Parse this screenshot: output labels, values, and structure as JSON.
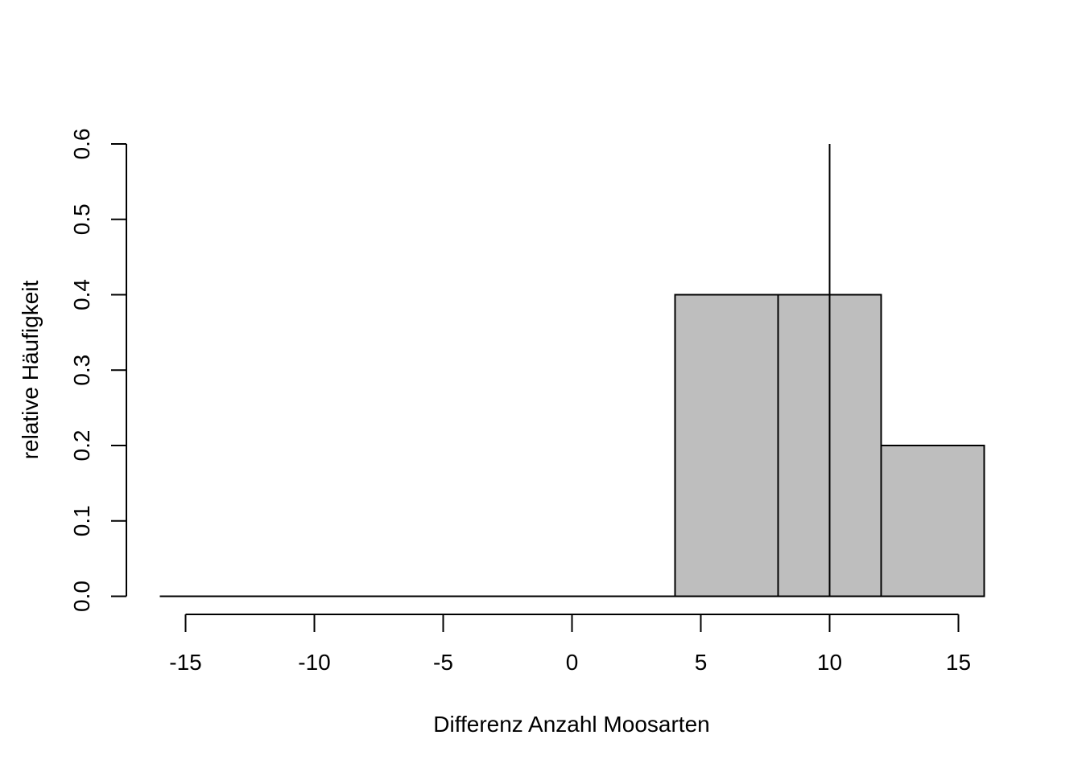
{
  "chart_data": {
    "type": "bar",
    "title": "",
    "xlabel": "Differenz Anzahl Moosarten",
    "ylabel": "relative Häufigkeit",
    "xlim": [
      -16,
      16
    ],
    "ylim": [
      0,
      0.6
    ],
    "xticks": [
      "-15",
      "-10",
      "-5",
      "0",
      "5",
      "10",
      "15"
    ],
    "xtick_values": [
      -15,
      -10,
      -5,
      0,
      5,
      10,
      15
    ],
    "yticks": [
      "0.0",
      "0.1",
      "0.2",
      "0.3",
      "0.4",
      "0.5",
      "0.6"
    ],
    "ytick_values": [
      0,
      0.1,
      0.2,
      0.3,
      0.4,
      0.5,
      0.6
    ],
    "bins": [
      {
        "from": -16,
        "to": -12,
        "value": 0
      },
      {
        "from": -12,
        "to": -8,
        "value": 0
      },
      {
        "from": -8,
        "to": -4,
        "value": 0
      },
      {
        "from": -4,
        "to": 0,
        "value": 0
      },
      {
        "from": 0,
        "to": 4,
        "value": 0
      },
      {
        "from": 4,
        "to": 8,
        "value": 0.4
      },
      {
        "from": 8,
        "to": 12,
        "value": 0.4
      },
      {
        "from": 12,
        "to": 16,
        "value": 0.2
      }
    ],
    "reference_line_x": 10,
    "grid": false,
    "bar_color": "#bebebe"
  }
}
